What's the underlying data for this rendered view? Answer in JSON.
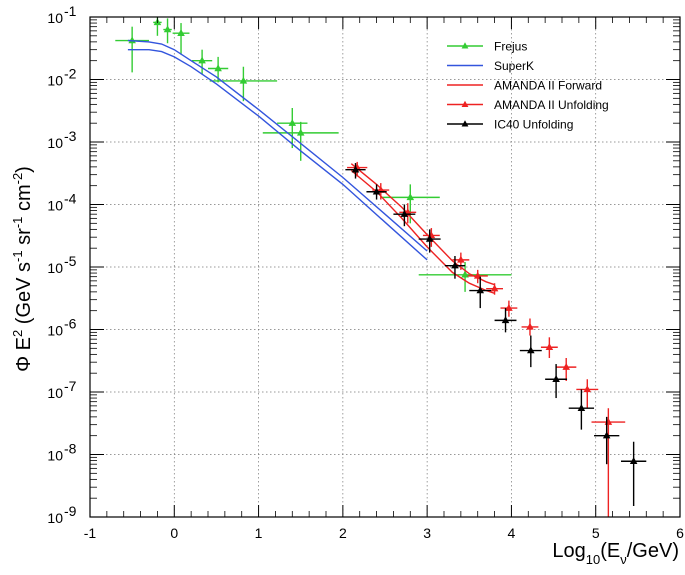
{
  "chart_data": {
    "type": "scatter",
    "xscale": "linear",
    "yscale": "log",
    "xlim": [
      -1,
      6
    ],
    "ylim": [
      1e-09,
      0.1
    ],
    "grid": true,
    "legend_position": "top-right",
    "xlabel": {
      "main": "Log",
      "sub": "10",
      "open": "(E",
      "sub2": "ν",
      "close": "/GeV)"
    },
    "ylabel": {
      "main": "Φ E",
      "sup1": "2",
      "mid": " (GeV s",
      "sup2": "-1",
      "mid2": " sr",
      "sup3": "-1",
      "mid3": " cm",
      "sup4": "-2",
      "close": ")"
    },
    "x_ticks": [
      {
        "value": -1,
        "label": "-1"
      },
      {
        "value": 0,
        "label": "0"
      },
      {
        "value": 1,
        "label": "1"
      },
      {
        "value": 2,
        "label": "2"
      },
      {
        "value": 3,
        "label": "3"
      },
      {
        "value": 4,
        "label": "4"
      },
      {
        "value": 5,
        "label": "5"
      },
      {
        "value": 6,
        "label": "6"
      }
    ],
    "y_ticks": [
      {
        "exp": -9,
        "base": "10",
        "sup": "-9"
      },
      {
        "exp": -8,
        "base": "10",
        "sup": "-8"
      },
      {
        "exp": -7,
        "base": "10",
        "sup": "-7"
      },
      {
        "exp": -6,
        "base": "10",
        "sup": "-6"
      },
      {
        "exp": -5,
        "base": "10",
        "sup": "-5"
      },
      {
        "exp": -4,
        "base": "10",
        "sup": "-4"
      },
      {
        "exp": -3,
        "base": "10",
        "sup": "-3"
      },
      {
        "exp": -2,
        "base": "10",
        "sup": "-2"
      },
      {
        "exp": -1,
        "base": "10",
        "sup": "-1"
      }
    ],
    "series": [
      {
        "name": "Frejus",
        "kind": "points",
        "color": "#33cc33",
        "marker": "triangle",
        "points": [
          {
            "x": -0.5,
            "y": 0.042,
            "xerr": 0.2,
            "ylo": 0.013,
            "yhi": 0.07
          },
          {
            "x": -0.2,
            "y": 0.082,
            "xerr": 0.05,
            "ylo": 0.05,
            "yhi": 0.1
          },
          {
            "x": -0.08,
            "y": 0.063,
            "xerr": 0.05,
            "ylo": 0.038,
            "yhi": 0.095
          },
          {
            "x": 0.08,
            "y": 0.055,
            "xerr": 0.1,
            "ylo": 0.025,
            "yhi": 0.08
          },
          {
            "x": 0.33,
            "y": 0.02,
            "xerr": 0.12,
            "ylo": 0.012,
            "yhi": 0.03
          },
          {
            "x": 0.52,
            "y": 0.015,
            "xerr": 0.12,
            "ylo": 0.009,
            "yhi": 0.023
          },
          {
            "x": 0.82,
            "y": 0.0095,
            "xerr": 0.4,
            "ylo": 0.0045,
            "yhi": 0.016
          },
          {
            "x": 1.4,
            "y": 0.002,
            "xerr": 0.18,
            "ylo": 0.0008,
            "yhi": 0.0035
          },
          {
            "x": 1.5,
            "y": 0.0014,
            "xerr": 0.45,
            "ylo": 0.0005,
            "yhi": 0.0021
          },
          {
            "x": 2.8,
            "y": 0.00013,
            "xerr": 0.35,
            "ylo": 5e-05,
            "yhi": 0.00021
          },
          {
            "x": 3.45,
            "y": 7.5e-06,
            "xerr": 0.55,
            "ylo": 4e-06,
            "yhi": 1.2e-05
          }
        ]
      },
      {
        "name": "SuperK",
        "kind": "band",
        "color": "#3355dd",
        "x": [
          -0.55,
          -0.3,
          -0.15,
          0.0,
          0.2,
          0.5,
          1.0,
          1.5,
          2.0,
          2.5,
          3.0
        ],
        "lower": [
          0.03,
          0.03,
          0.028,
          0.023,
          0.016,
          0.0085,
          0.0026,
          0.00072,
          0.00021,
          5.2e-05,
          1.3e-05
        ],
        "upper": [
          0.042,
          0.04,
          0.037,
          0.03,
          0.02,
          0.011,
          0.0033,
          0.00095,
          0.00027,
          7e-05,
          1.8e-05
        ]
      },
      {
        "name": "AMANDA II Forward",
        "kind": "band",
        "color": "#ee2222",
        "x": [
          2.1,
          2.4,
          2.7,
          3.0,
          3.3,
          3.5,
          3.7,
          3.8
        ],
        "lower": [
          0.00035,
          0.00016,
          6e-05,
          2.1e-05,
          8.2e-06,
          5.5e-06,
          4.2e-06,
          3.8e-06
        ],
        "upper": [
          0.00045,
          0.00021,
          9e-05,
          3.3e-05,
          1.25e-05,
          7.8e-06,
          5.8e-06,
          5.2e-06
        ]
      },
      {
        "name": "AMANDA II Unfolding",
        "kind": "points",
        "color": "#ee2222",
        "marker": "triangle",
        "points": [
          {
            "x": 2.17,
            "y": 0.00039,
            "xerr": 0.12,
            "ylo": 0.00028,
            "yhi": 0.00048
          },
          {
            "x": 2.45,
            "y": 0.00017,
            "xerr": 0.1,
            "ylo": 0.00012,
            "yhi": 0.00022
          },
          {
            "x": 2.77,
            "y": 7.5e-05,
            "xerr": 0.1,
            "ylo": 5e-05,
            "yhi": 0.000105
          },
          {
            "x": 3.05,
            "y": 3.2e-05,
            "xerr": 0.1,
            "ylo": 2.1e-05,
            "yhi": 4.2e-05
          },
          {
            "x": 3.4,
            "y": 1.3e-05,
            "xerr": 0.1,
            "ylo": 9e-06,
            "yhi": 1.7e-05
          },
          {
            "x": 3.6,
            "y": 7.2e-06,
            "xerr": 0.12,
            "ylo": 5.5e-06,
            "yhi": 9e-06
          },
          {
            "x": 3.8,
            "y": 4.5e-06,
            "xerr": 0.1,
            "ylo": 3.6e-06,
            "yhi": 5.5e-06
          },
          {
            "x": 3.97,
            "y": 2.2e-06,
            "xerr": 0.1,
            "ylo": 1.6e-06,
            "yhi": 2.9e-06
          },
          {
            "x": 4.22,
            "y": 1.1e-06,
            "xerr": 0.1,
            "ylo": 8e-07,
            "yhi": 1.5e-06
          },
          {
            "x": 4.45,
            "y": 5.2e-07,
            "xerr": 0.1,
            "ylo": 3.5e-07,
            "yhi": 7.5e-07
          },
          {
            "x": 4.65,
            "y": 2.5e-07,
            "xerr": 0.12,
            "ylo": 1.5e-07,
            "yhi": 3.5e-07
          },
          {
            "x": 4.9,
            "y": 1.1e-07,
            "xerr": 0.13,
            "ylo": 5.5e-08,
            "yhi": 1.6e-07
          },
          {
            "x": 5.15,
            "y": 3.3e-08,
            "xerr": 0.2,
            "ylo": 1e-09,
            "yhi": 5.5e-08
          }
        ]
      },
      {
        "name": "IC40 Unfolding",
        "kind": "points",
        "color": "#000000",
        "marker": "triangle",
        "points": [
          {
            "x": 2.15,
            "y": 0.00036,
            "xerr": 0.12,
            "ylo": 0.00026,
            "yhi": 0.00046
          },
          {
            "x": 2.4,
            "y": 0.00016,
            "xerr": 0.12,
            "ylo": 0.00012,
            "yhi": 0.00021
          },
          {
            "x": 2.73,
            "y": 7e-05,
            "xerr": 0.13,
            "ylo": 4.5e-05,
            "yhi": 0.0001
          },
          {
            "x": 3.03,
            "y": 2.8e-05,
            "xerr": 0.13,
            "ylo": 1.7e-05,
            "yhi": 4e-05
          },
          {
            "x": 3.33,
            "y": 1.05e-05,
            "xerr": 0.12,
            "ylo": 6.5e-06,
            "yhi": 1.5e-05
          },
          {
            "x": 3.63,
            "y": 4.2e-06,
            "xerr": 0.13,
            "ylo": 2.2e-06,
            "yhi": 7e-06
          },
          {
            "x": 3.93,
            "y": 1.4e-06,
            "xerr": 0.13,
            "ylo": 9e-07,
            "yhi": 2.2e-06
          },
          {
            "x": 4.23,
            "y": 4.6e-07,
            "xerr": 0.13,
            "ylo": 2.5e-07,
            "yhi": 8e-07
          },
          {
            "x": 4.53,
            "y": 1.6e-07,
            "xerr": 0.13,
            "ylo": 8e-08,
            "yhi": 2.8e-07
          },
          {
            "x": 4.83,
            "y": 5.5e-08,
            "xerr": 0.15,
            "ylo": 2.5e-08,
            "yhi": 1.1e-07
          },
          {
            "x": 5.13,
            "y": 2e-08,
            "xerr": 0.15,
            "ylo": 7e-09,
            "yhi": 4e-08
          },
          {
            "x": 5.45,
            "y": 7.8e-09,
            "xerr": 0.15,
            "ylo": 1.5e-09,
            "yhi": 1.6e-08
          }
        ]
      }
    ],
    "legend": [
      {
        "name": "Frejus",
        "color": "#33cc33",
        "style": "marker-line"
      },
      {
        "name": "SuperK",
        "color": "#3355dd",
        "style": "line"
      },
      {
        "name": "AMANDA II Forward",
        "color": "#ee2222",
        "style": "line"
      },
      {
        "name": "AMANDA II Unfolding",
        "color": "#ee2222",
        "style": "marker-line"
      },
      {
        "name": "IC40 Unfolding",
        "color": "#000000",
        "style": "marker-line"
      }
    ]
  }
}
